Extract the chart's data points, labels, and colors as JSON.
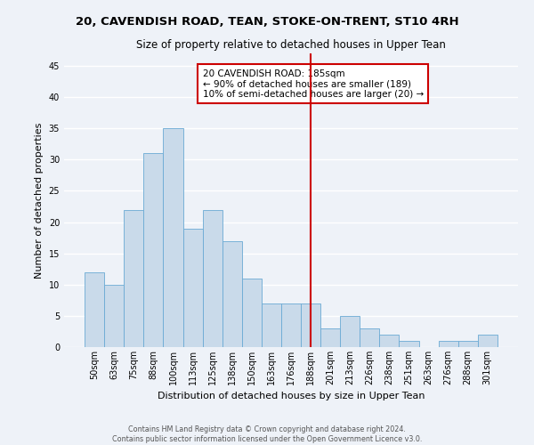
{
  "title_line1": "20, CAVENDISH ROAD, TEAN, STOKE-ON-TRENT, ST10 4RH",
  "title_line2": "Size of property relative to detached houses in Upper Tean",
  "xlabel": "Distribution of detached houses by size in Upper Tean",
  "ylabel": "Number of detached properties",
  "bar_labels": [
    "50sqm",
    "63sqm",
    "75sqm",
    "88sqm",
    "100sqm",
    "113sqm",
    "125sqm",
    "138sqm",
    "150sqm",
    "163sqm",
    "176sqm",
    "188sqm",
    "201sqm",
    "213sqm",
    "226sqm",
    "238sqm",
    "251sqm",
    "263sqm",
    "276sqm",
    "288sqm",
    "301sqm"
  ],
  "bar_values": [
    12,
    10,
    22,
    31,
    35,
    19,
    22,
    17,
    11,
    7,
    7,
    7,
    3,
    5,
    3,
    2,
    1,
    0,
    1,
    1,
    2
  ],
  "bar_color": "#c9daea",
  "bar_edge_color": "#6aaad4",
  "vline_x": 11,
  "vline_color": "#cc0000",
  "annotation_title": "20 CAVENDISH ROAD: 185sqm",
  "annotation_line1": "← 90% of detached houses are smaller (189)",
  "annotation_line2": "10% of semi-detached houses are larger (20) →",
  "annotation_box_edge": "#cc0000",
  "annotation_box_face": "#ffffff",
  "ylim": [
    0,
    47
  ],
  "yticks": [
    0,
    5,
    10,
    15,
    20,
    25,
    30,
    35,
    40,
    45
  ],
  "footer_line1": "Contains HM Land Registry data © Crown copyright and database right 2024.",
  "footer_line2": "Contains public sector information licensed under the Open Government Licence v3.0.",
  "background_color": "#eef2f8",
  "grid_color": "#ffffff",
  "title_fontsize": 9.5,
  "subtitle_fontsize": 8.5,
  "axis_label_fontsize": 8,
  "tick_fontsize": 7,
  "footer_fontsize": 5.8,
  "annotation_fontsize": 7.5
}
